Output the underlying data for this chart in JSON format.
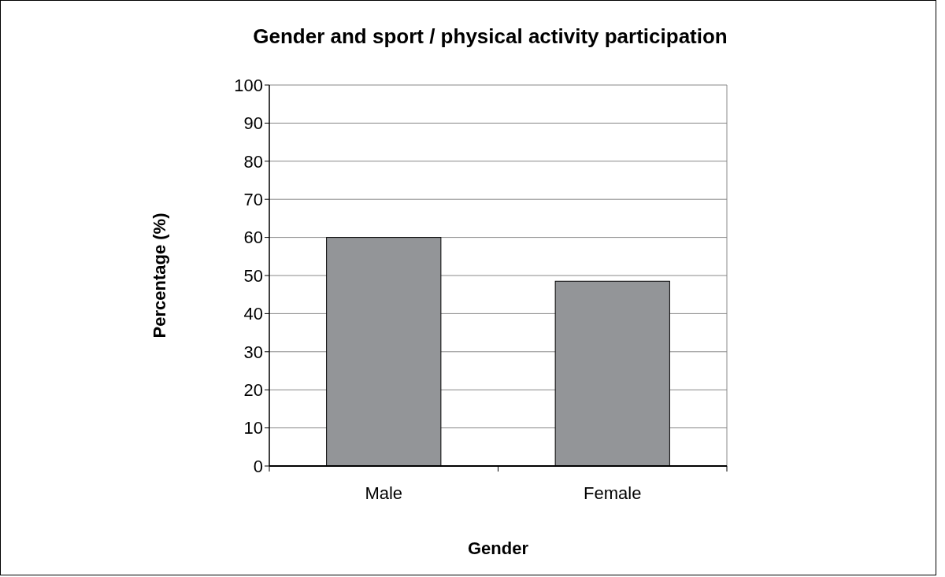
{
  "chart_data": {
    "type": "bar",
    "title": "Gender and sport / physical activity participation",
    "xlabel": "Gender",
    "ylabel": "Percentage (%)",
    "categories": [
      "Male",
      "Female"
    ],
    "values": [
      60,
      48.5
    ],
    "color": "#939598",
    "ylim": [
      0,
      100
    ],
    "yticks": [
      0,
      10,
      20,
      30,
      40,
      50,
      60,
      70,
      80,
      90,
      100
    ],
    "grid": "y"
  }
}
